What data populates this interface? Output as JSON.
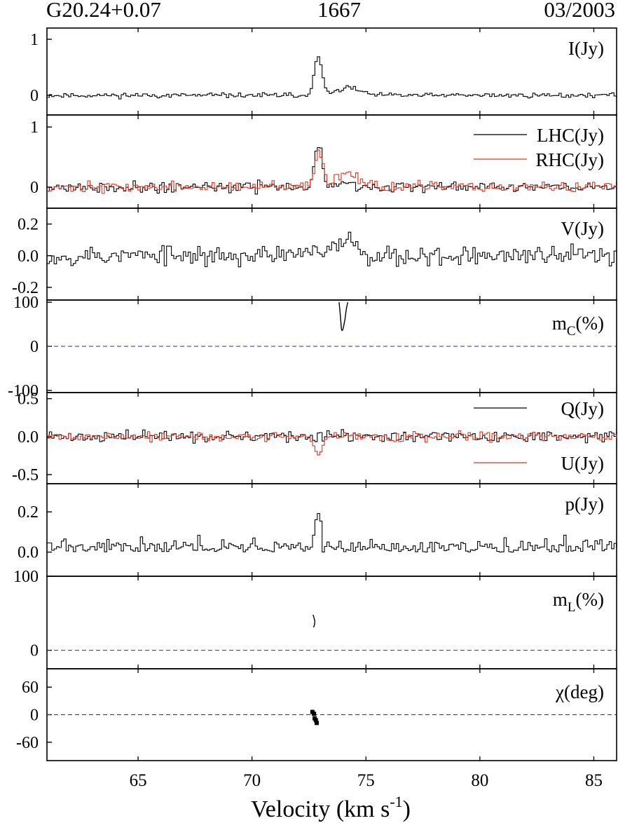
{
  "header": {
    "left": "G20.24+0.07",
    "center": "1667",
    "right": "03/2003"
  },
  "colors": {
    "black": "#000000",
    "red": "#e8321e",
    "zero_line": "#2c2c8c"
  },
  "chart_data": [
    {
      "type": "line",
      "id": "I",
      "label": "I(Jy)",
      "ylim": [
        -0.35,
        1.2
      ],
      "yticks": [
        {
          "v": 0,
          "t": "0"
        },
        {
          "v": 1,
          "t": "1"
        }
      ],
      "series": [
        {
          "name": "I(Jy)",
          "color": "black",
          "style": "step",
          "noise": 0.03,
          "seed": 11,
          "baseline": 0,
          "peaks": [
            {
              "x": 72.85,
              "a": 0.66,
              "w": 0.18
            },
            {
              "x": 74.2,
              "a": 0.14,
              "w": 0.45
            }
          ]
        }
      ]
    },
    {
      "type": "line",
      "id": "LR",
      "ylim": [
        -0.35,
        1.2
      ],
      "yticks": [
        {
          "v": 0,
          "t": "0"
        },
        {
          "v": 1,
          "t": "1"
        }
      ],
      "legend": [
        {
          "name": "LHC(Jy)",
          "color": "black"
        },
        {
          "name": "RHC(Jy)",
          "color": "red"
        }
      ],
      "series": [
        {
          "name": "LHC(Jy)",
          "color": "black",
          "style": "step",
          "noise": 0.06,
          "seed": 21,
          "baseline": 0,
          "peaks": [
            {
              "x": 72.85,
              "a": 0.72,
              "w": 0.16
            },
            {
              "x": 74.0,
              "a": 0.08,
              "w": 0.4
            }
          ]
        },
        {
          "name": "RHC(Jy)",
          "color": "red",
          "style": "step",
          "noise": 0.06,
          "seed": 37,
          "baseline": 0,
          "peaks": [
            {
              "x": 72.9,
              "a": 0.6,
              "w": 0.18
            },
            {
              "x": 74.2,
              "a": 0.26,
              "w": 0.5
            }
          ]
        }
      ]
    },
    {
      "type": "line",
      "id": "V",
      "label": "V(Jy)",
      "ylim": [
        -0.28,
        0.3
      ],
      "yticks": [
        {
          "v": -0.2,
          "t": "-0.2"
        },
        {
          "v": 0,
          "t": "0.0"
        },
        {
          "v": 0.2,
          "t": "0.2"
        }
      ],
      "series": [
        {
          "name": "V(Jy)",
          "color": "black",
          "style": "step",
          "noise": 0.045,
          "seed": 53,
          "baseline": 0,
          "peaks": [
            {
              "x": 72.8,
              "a": 0.05,
              "w": 0.15
            },
            {
              "x": 74.1,
              "a": 0.11,
              "w": 0.5
            }
          ]
        }
      ]
    },
    {
      "type": "line",
      "id": "mc",
      "label_main": "m",
      "label_sub": "C",
      "label_tail": "(%)",
      "ylim": [
        -105,
        105
      ],
      "zero_line": true,
      "yticks": [
        {
          "v": -100,
          "t": "-100"
        },
        {
          "v": 0,
          "t": "0"
        },
        {
          "v": 100,
          "t": "100"
        }
      ],
      "series": [
        {
          "name": "mc",
          "color": "black",
          "style": "line",
          "points": [
            [
              73.82,
              100
            ],
            [
              73.86,
              80
            ],
            [
              73.9,
              55
            ],
            [
              73.92,
              40
            ],
            [
              73.95,
              36
            ],
            [
              73.98,
              37
            ],
            [
              74.02,
              45
            ],
            [
              74.08,
              62
            ],
            [
              74.14,
              85
            ],
            [
              74.2,
              100
            ]
          ]
        }
      ]
    },
    {
      "type": "line",
      "id": "QU",
      "ylim": [
        -0.62,
        0.58
      ],
      "yticks": [
        {
          "v": -0.5,
          "t": "-0.5"
        },
        {
          "v": 0,
          "t": "0.0"
        },
        {
          "v": 0.5,
          "t": "0.5"
        }
      ],
      "legend": [
        {
          "name": "Q(Jy)",
          "color": "black"
        },
        {
          "name": "U(Jy)",
          "color": "red"
        }
      ],
      "series": [
        {
          "name": "Q(Jy)",
          "color": "black",
          "style": "step",
          "noise": 0.05,
          "seed": 71,
          "baseline": 0,
          "peaks": []
        },
        {
          "name": "U(Jy)",
          "color": "red",
          "style": "step",
          "noise": 0.045,
          "seed": 89,
          "baseline": 0,
          "peaks": [
            {
              "x": 72.85,
              "a": -0.2,
              "w": 0.18
            }
          ]
        }
      ]
    },
    {
      "type": "line",
      "id": "p",
      "label": "p(Jy)",
      "ylim": [
        -0.12,
        0.34
      ],
      "yticks": [
        {
          "v": 0,
          "t": "0.0"
        },
        {
          "v": 0.2,
          "t": "0.2"
        }
      ],
      "series": [
        {
          "name": "p(Jy)",
          "color": "black",
          "style": "step",
          "noise": 0.04,
          "seed": 97,
          "baseline": 0.01,
          "positive": true,
          "peaks": [
            {
              "x": 72.85,
              "a": 0.17,
              "w": 0.14
            }
          ]
        }
      ]
    },
    {
      "type": "line",
      "id": "mL",
      "label_main": "m",
      "label_sub": "L",
      "label_tail": "(%)",
      "ylim": [
        -25,
        100
      ],
      "zero_line": true,
      "yticks": [
        {
          "v": 0,
          "t": "0"
        },
        {
          "v": 100,
          "t": "100"
        }
      ],
      "series": [
        {
          "name": "mL",
          "color": "black",
          "style": "line",
          "points": [
            [
              72.68,
              48
            ],
            [
              72.72,
              44
            ],
            [
              72.76,
              39
            ],
            [
              72.74,
              34
            ],
            [
              72.7,
              31
            ]
          ]
        }
      ]
    },
    {
      "type": "scatter",
      "id": "chi",
      "label_main": "χ",
      "label_tail": "(deg)",
      "ylim": [
        -100,
        100
      ],
      "zero_line": true,
      "yticks": [
        {
          "v": -60,
          "t": "-60"
        },
        {
          "v": 0,
          "t": "0"
        },
        {
          "v": 60,
          "t": "60"
        }
      ],
      "series": [
        {
          "name": "chi",
          "color": "black",
          "style": "markers",
          "points": [
            [
              72.65,
              6
            ],
            [
              72.72,
              2
            ],
            [
              72.75,
              -8
            ],
            [
              72.8,
              -12
            ],
            [
              72.84,
              -18
            ]
          ]
        }
      ]
    }
  ],
  "x_axis": {
    "xlim": [
      61,
      86
    ],
    "ticks": [
      65,
      70,
      75,
      80,
      85
    ],
    "label": "Velocity (km s",
    "label_sup": "-1",
    "label_tail": ")"
  }
}
